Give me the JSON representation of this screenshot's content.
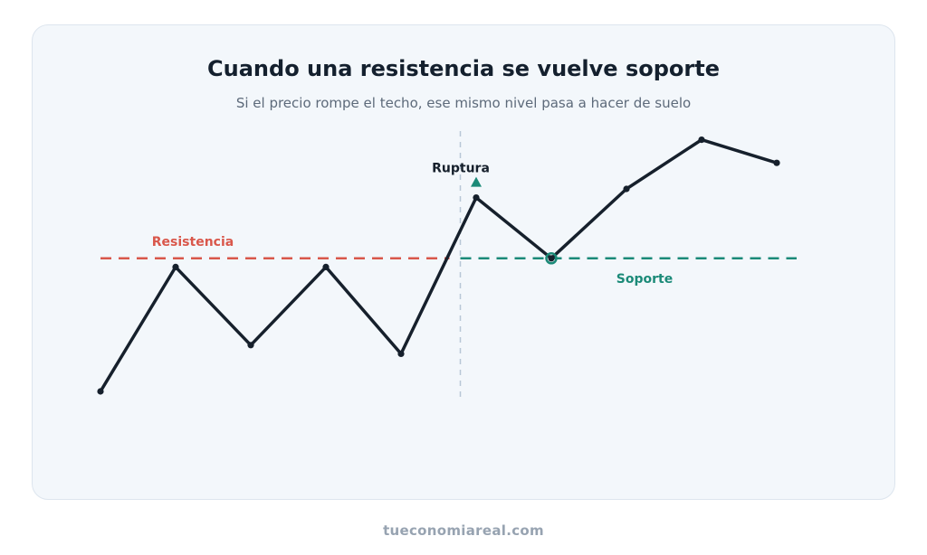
{
  "header": {
    "title": "Cuando una resistencia se vuelve soporte",
    "subtitle": "Si el precio rompe el techo, ese mismo nivel pasa a hacer de suelo"
  },
  "labels": {
    "resistance": "Resistencia",
    "support": "Soporte",
    "breakout": "Ruptura"
  },
  "price_path": [
    {
      "step": 0,
      "level": 20
    },
    {
      "step": 1,
      "level": 63
    },
    {
      "step": 2,
      "level": 36
    },
    {
      "step": 3,
      "level": 63
    },
    {
      "step": 4,
      "level": 33
    },
    {
      "step": 5,
      "level": 87
    },
    {
      "step": 6,
      "level": 66
    },
    {
      "step": 7,
      "level": 90
    },
    {
      "step": 8,
      "level": 107
    },
    {
      "step": 9,
      "level": 99
    }
  ],
  "key_level": 66,
  "breakout_step": 5,
  "retest_step": 6,
  "colors": {
    "resistance": "#d9574b",
    "support": "#1b8a78",
    "price": "#16202c",
    "divider": "#b8c7d6",
    "card_bg": "#f3f7fb"
  },
  "footer": {
    "site": "tueconomiareal.com"
  }
}
